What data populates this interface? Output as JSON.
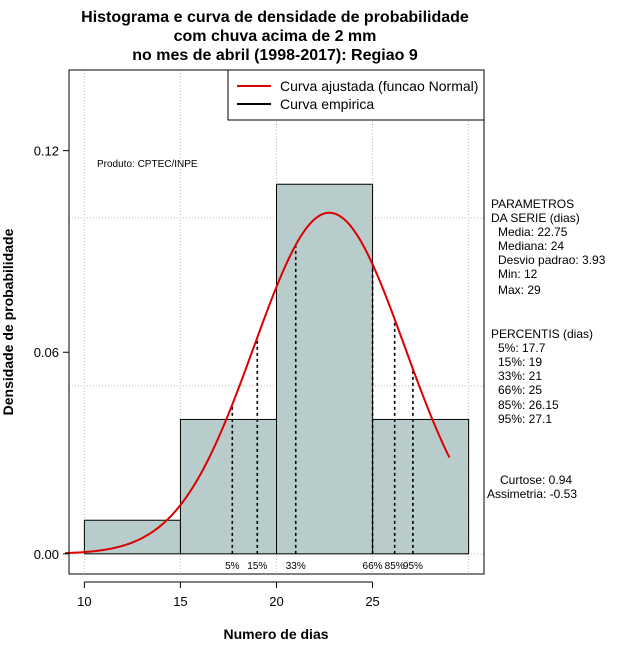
{
  "chart_data": {
    "type": "bar",
    "title_lines": [
      "Histograma e curva de densidade de probabilidade",
      "com chuva acima de 2 mm",
      "no mes de abril (1998-2017): Regiao 9"
    ],
    "xlabel": "Numero de dias",
    "ylabel": "Densidade de probabilidade",
    "xlim": [
      9.2,
      30.8
    ],
    "ylim": [
      -0.006,
      0.144
    ],
    "x_ticks": [
      10,
      15,
      20,
      25
    ],
    "x_tick_labels": [
      "10",
      "15",
      "20",
      "25"
    ],
    "y_ticks": [
      0.0,
      0.06,
      0.12
    ],
    "y_tick_labels": [
      "0.00",
      "0.06",
      "0.12"
    ],
    "grid": true,
    "grid_x": [
      10,
      15,
      20,
      25,
      30
    ],
    "grid_y": [
      0.0,
      0.05,
      0.1
    ],
    "histogram": {
      "bins": [
        {
          "x0": 10,
          "x1": 15,
          "density": 0.01
        },
        {
          "x0": 15,
          "x1": 20,
          "density": 0.04
        },
        {
          "x0": 20,
          "x1": 25,
          "density": 0.11
        },
        {
          "x0": 25,
          "x1": 30,
          "density": 0.04
        }
      ],
      "fill": "#b7cccb"
    },
    "normal_curve": {
      "name": "Curva ajustada (funcao Normal)",
      "mean": 22.75,
      "sd": 3.93,
      "x_range": [
        9,
        29
      ],
      "color": "#dd0000"
    },
    "empirical_curve": {
      "name": "Curva empirica",
      "color": "#000000"
    },
    "percentile_markers": [
      {
        "label": "5%",
        "x": 17.7
      },
      {
        "label": "15%",
        "x": 19
      },
      {
        "label": "33%",
        "x": 21
      },
      {
        "label": "66%",
        "x": 25
      },
      {
        "label": "85%",
        "x": 26.15
      },
      {
        "label": "95%",
        "x": 27.1
      }
    ],
    "legend": {
      "placement": "top-right",
      "entries": [
        {
          "label": "Curva ajustada (funcao Normal)",
          "color": "#dd0000"
        },
        {
          "label": "Curva empirica",
          "color": "#000000"
        }
      ]
    },
    "annotation": "Produto: CPTEC/INPE"
  },
  "stats_panel": {
    "params_title_1": "PARAMETROS",
    "params_title_2": "DA SERIE (dias)",
    "params": [
      "Media: 22.75",
      "Mediana: 24",
      "Desvio padrao: 3.93",
      "Min: 12",
      "Max: 29"
    ],
    "percentis_title": "PERCENTIS (dias)",
    "percentis": [
      "5%: 17.7",
      "15%: 19",
      "33%: 21",
      "66%: 25",
      "85%: 26.15",
      "95%: 27.1"
    ],
    "curtose": "Curtose: 0.94",
    "assimetria": "Assimetria: -0.53"
  }
}
